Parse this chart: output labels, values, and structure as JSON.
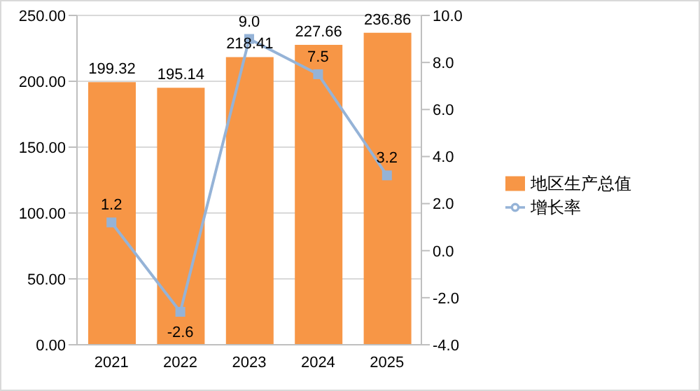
{
  "chart_data": {
    "type": "bar",
    "categories": [
      "2021",
      "2022",
      "2023",
      "2024",
      "2025"
    ],
    "series": [
      {
        "name": "地区生产总值",
        "color": "#f79646",
        "values": [
          199.32,
          195.14,
          218.41,
          227.66,
          236.86
        ],
        "value_labels": [
          "199.32",
          "195.14",
          "218.41",
          "227.66",
          "236.86"
        ]
      },
      {
        "name": "增长率",
        "type": "line",
        "axis": "y2",
        "color": "#95b3d7",
        "values": [
          1.2,
          -2.6,
          9.0,
          7.5,
          3.2
        ],
        "value_labels": [
          "1.2",
          "-2.6",
          "9.0",
          "7.5",
          "3.2"
        ]
      }
    ],
    "ylim": [
      0,
      250
    ],
    "yticks": [
      {
        "value": 0,
        "label": "0.00"
      },
      {
        "value": 50,
        "label": "50.00"
      },
      {
        "value": 100,
        "label": "100.00"
      },
      {
        "value": 150,
        "label": "150.00"
      },
      {
        "value": 200,
        "label": "200.00"
      },
      {
        "value": 250,
        "label": "250.00"
      }
    ],
    "y2lim": [
      -4,
      10
    ],
    "y2ticks": [
      {
        "value": -4,
        "label": "-4.0"
      },
      {
        "value": -2,
        "label": "-2.0"
      },
      {
        "value": 0,
        "label": "0.0"
      },
      {
        "value": 2,
        "label": "2.0"
      },
      {
        "value": 4,
        "label": "4.0"
      },
      {
        "value": 6,
        "label": "6.0"
      },
      {
        "value": 8,
        "label": "8.0"
      },
      {
        "value": 10,
        "label": "10.0"
      }
    ],
    "grid": "y",
    "legend": "right",
    "marker": "square",
    "line_style": "solid"
  }
}
